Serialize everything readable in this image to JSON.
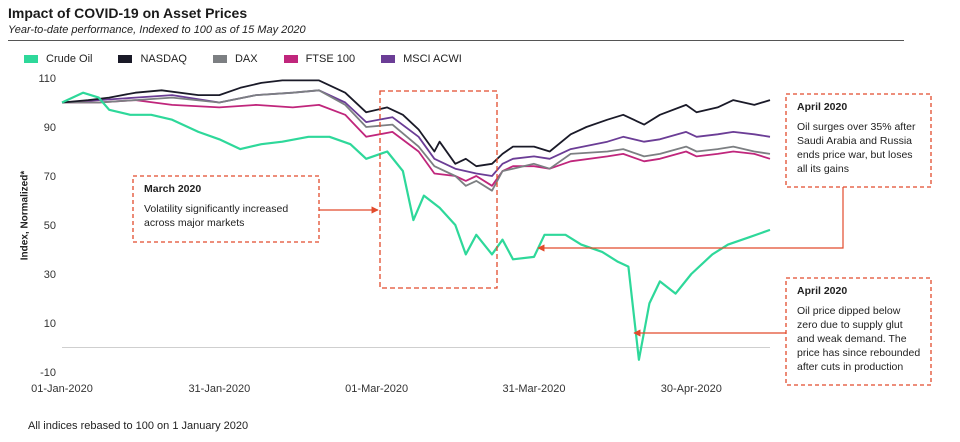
{
  "chart_data": {
    "type": "line",
    "title": "Impact of COVID-19 on Asset Prices",
    "subtitle": "Year-to-date performance, Indexed to 100 as of 15 May 2020",
    "ylabel": "Index, Normalized*",
    "xlabel": "",
    "ylim": [
      -10,
      110
    ],
    "yticks": [
      -10,
      10,
      30,
      50,
      70,
      90,
      110
    ],
    "xlim": [
      "2020-01-01",
      "2020-05-15"
    ],
    "xticks": [
      {
        "date": "2020-01-01",
        "label": "01-Jan-2020"
      },
      {
        "date": "2020-01-31",
        "label": "31-Jan-2020"
      },
      {
        "date": "2020-03-01",
        "label": "01-Mar-2020"
      },
      {
        "date": "2020-03-31",
        "label": "31-Mar-2020"
      },
      {
        "date": "2020-04-30",
        "label": "30-Apr-2020"
      }
    ],
    "reference_line": {
      "y": 0
    },
    "series": [
      {
        "name": "Crude Oil",
        "color": "#2ed89a",
        "points": [
          [
            "2020-01-01",
            100
          ],
          [
            "2020-01-05",
            104
          ],
          [
            "2020-01-08",
            102
          ],
          [
            "2020-01-10",
            97
          ],
          [
            "2020-01-14",
            95
          ],
          [
            "2020-01-18",
            95
          ],
          [
            "2020-01-22",
            93
          ],
          [
            "2020-01-27",
            88
          ],
          [
            "2020-01-31",
            85
          ],
          [
            "2020-02-04",
            81
          ],
          [
            "2020-02-08",
            83
          ],
          [
            "2020-02-12",
            84
          ],
          [
            "2020-02-17",
            86
          ],
          [
            "2020-02-21",
            86
          ],
          [
            "2020-02-25",
            83
          ],
          [
            "2020-02-28",
            77
          ],
          [
            "2020-03-03",
            80
          ],
          [
            "2020-03-06",
            72
          ],
          [
            "2020-03-08",
            52
          ],
          [
            "2020-03-10",
            62
          ],
          [
            "2020-03-13",
            57
          ],
          [
            "2020-03-16",
            50
          ],
          [
            "2020-03-18",
            38
          ],
          [
            "2020-03-20",
            46
          ],
          [
            "2020-03-23",
            38
          ],
          [
            "2020-03-25",
            44
          ],
          [
            "2020-03-27",
            36
          ],
          [
            "2020-03-31",
            37
          ],
          [
            "2020-04-02",
            46
          ],
          [
            "2020-04-06",
            46
          ],
          [
            "2020-04-09",
            42
          ],
          [
            "2020-04-13",
            39
          ],
          [
            "2020-04-16",
            35
          ],
          [
            "2020-04-18",
            33
          ],
          [
            "2020-04-20",
            -5
          ],
          [
            "2020-04-22",
            18
          ],
          [
            "2020-04-24",
            27
          ],
          [
            "2020-04-27",
            22
          ],
          [
            "2020-04-30",
            30
          ],
          [
            "2020-05-04",
            38
          ],
          [
            "2020-05-07",
            42
          ],
          [
            "2020-05-11",
            45
          ],
          [
            "2020-05-15",
            48
          ]
        ]
      },
      {
        "name": "NASDAQ",
        "color": "#1a1a28",
        "points": [
          [
            "2020-01-01",
            100
          ],
          [
            "2020-01-06",
            101
          ],
          [
            "2020-01-10",
            102
          ],
          [
            "2020-01-15",
            104
          ],
          [
            "2020-01-20",
            105
          ],
          [
            "2020-01-27",
            103
          ],
          [
            "2020-01-31",
            103
          ],
          [
            "2020-02-04",
            106
          ],
          [
            "2020-02-08",
            108
          ],
          [
            "2020-02-12",
            109
          ],
          [
            "2020-02-19",
            109
          ],
          [
            "2020-02-24",
            104
          ],
          [
            "2020-02-28",
            96
          ],
          [
            "2020-03-03",
            98
          ],
          [
            "2020-03-06",
            95
          ],
          [
            "2020-03-09",
            89
          ],
          [
            "2020-03-12",
            80
          ],
          [
            "2020-03-13",
            84
          ],
          [
            "2020-03-16",
            75
          ],
          [
            "2020-03-18",
            77
          ],
          [
            "2020-03-20",
            74
          ],
          [
            "2020-03-23",
            75
          ],
          [
            "2020-03-25",
            79
          ],
          [
            "2020-03-27",
            82
          ],
          [
            "2020-03-31",
            82
          ],
          [
            "2020-04-03",
            80
          ],
          [
            "2020-04-07",
            87
          ],
          [
            "2020-04-10",
            90
          ],
          [
            "2020-04-14",
            93
          ],
          [
            "2020-04-17",
            95
          ],
          [
            "2020-04-21",
            91
          ],
          [
            "2020-04-24",
            95
          ],
          [
            "2020-04-29",
            99
          ],
          [
            "2020-05-01",
            96
          ],
          [
            "2020-05-05",
            98
          ],
          [
            "2020-05-08",
            101
          ],
          [
            "2020-05-12",
            99
          ],
          [
            "2020-05-15",
            101
          ]
        ]
      },
      {
        "name": "DAX",
        "color": "#7c7f82",
        "points": [
          [
            "2020-01-01",
            100
          ],
          [
            "2020-01-08",
            100
          ],
          [
            "2020-01-15",
            101
          ],
          [
            "2020-01-22",
            102
          ],
          [
            "2020-01-31",
            100
          ],
          [
            "2020-02-07",
            103
          ],
          [
            "2020-02-14",
            104
          ],
          [
            "2020-02-19",
            105
          ],
          [
            "2020-02-24",
            99
          ],
          [
            "2020-02-28",
            90
          ],
          [
            "2020-03-04",
            91
          ],
          [
            "2020-03-09",
            82
          ],
          [
            "2020-03-12",
            74
          ],
          [
            "2020-03-16",
            70
          ],
          [
            "2020-03-18",
            66
          ],
          [
            "2020-03-20",
            68
          ],
          [
            "2020-03-23",
            64
          ],
          [
            "2020-03-25",
            72
          ],
          [
            "2020-03-27",
            73
          ],
          [
            "2020-03-31",
            75
          ],
          [
            "2020-04-03",
            73
          ],
          [
            "2020-04-07",
            79
          ],
          [
            "2020-04-14",
            80
          ],
          [
            "2020-04-17",
            81
          ],
          [
            "2020-04-21",
            78
          ],
          [
            "2020-04-24",
            79
          ],
          [
            "2020-04-29",
            82
          ],
          [
            "2020-05-01",
            80
          ],
          [
            "2020-05-05",
            81
          ],
          [
            "2020-05-08",
            82
          ],
          [
            "2020-05-12",
            80
          ],
          [
            "2020-05-15",
            79
          ]
        ]
      },
      {
        "name": "FTSE 100",
        "color": "#c0267c",
        "points": [
          [
            "2020-01-01",
            100
          ],
          [
            "2020-01-08",
            100
          ],
          [
            "2020-01-15",
            101
          ],
          [
            "2020-01-22",
            99
          ],
          [
            "2020-01-31",
            98
          ],
          [
            "2020-02-07",
            99
          ],
          [
            "2020-02-14",
            98
          ],
          [
            "2020-02-19",
            99
          ],
          [
            "2020-02-24",
            95
          ],
          [
            "2020-02-28",
            86
          ],
          [
            "2020-03-04",
            88
          ],
          [
            "2020-03-09",
            80
          ],
          [
            "2020-03-12",
            71
          ],
          [
            "2020-03-16",
            70
          ],
          [
            "2020-03-18",
            68
          ],
          [
            "2020-03-20",
            70
          ],
          [
            "2020-03-23",
            66
          ],
          [
            "2020-03-25",
            72
          ],
          [
            "2020-03-27",
            74
          ],
          [
            "2020-03-31",
            74
          ],
          [
            "2020-04-03",
            73
          ],
          [
            "2020-04-07",
            76
          ],
          [
            "2020-04-14",
            78
          ],
          [
            "2020-04-17",
            79
          ],
          [
            "2020-04-21",
            76
          ],
          [
            "2020-04-24",
            77
          ],
          [
            "2020-04-29",
            80
          ],
          [
            "2020-05-01",
            78
          ],
          [
            "2020-05-05",
            79
          ],
          [
            "2020-05-08",
            80
          ],
          [
            "2020-05-12",
            79
          ],
          [
            "2020-05-15",
            77
          ]
        ]
      },
      {
        "name": "MSCI ACWI",
        "color": "#6b3d96",
        "points": [
          [
            "2020-01-01",
            100
          ],
          [
            "2020-01-08",
            101
          ],
          [
            "2020-01-15",
            102
          ],
          [
            "2020-01-22",
            103
          ],
          [
            "2020-01-31",
            100
          ],
          [
            "2020-02-07",
            103
          ],
          [
            "2020-02-14",
            104
          ],
          [
            "2020-02-19",
            105
          ],
          [
            "2020-02-24",
            100
          ],
          [
            "2020-02-28",
            92
          ],
          [
            "2020-03-04",
            94
          ],
          [
            "2020-03-09",
            86
          ],
          [
            "2020-03-12",
            77
          ],
          [
            "2020-03-16",
            73
          ],
          [
            "2020-03-18",
            72
          ],
          [
            "2020-03-20",
            71
          ],
          [
            "2020-03-23",
            70
          ],
          [
            "2020-03-25",
            75
          ],
          [
            "2020-03-27",
            77
          ],
          [
            "2020-03-31",
            78
          ],
          [
            "2020-04-03",
            77
          ],
          [
            "2020-04-07",
            81
          ],
          [
            "2020-04-14",
            84
          ],
          [
            "2020-04-17",
            86
          ],
          [
            "2020-04-21",
            84
          ],
          [
            "2020-04-24",
            85
          ],
          [
            "2020-04-29",
            88
          ],
          [
            "2020-05-01",
            86
          ],
          [
            "2020-05-05",
            87
          ],
          [
            "2020-05-08",
            88
          ],
          [
            "2020-05-12",
            87
          ],
          [
            "2020-05-15",
            86
          ]
        ]
      }
    ],
    "annotations": [
      {
        "id": "march",
        "title": "March 2020",
        "lines": [
          "Volatility significantly increased",
          "across major markets"
        ],
        "color": "#e24b2c"
      },
      {
        "id": "april1",
        "title": "April 2020",
        "lines": [
          "Oil surges over 35%  after",
          "Saudi Arabia and Russia",
          "ends price war, but loses",
          "all its gains"
        ],
        "color": "#e24b2c"
      },
      {
        "id": "april2",
        "title": "April 2020",
        "lines": [
          "Oil price dipped below",
          "zero due to supply glut",
          "and weak demand. The",
          "price has since rebounded",
          "after cuts in production"
        ],
        "color": "#e24b2c"
      }
    ]
  },
  "footnote": "All indices rebased to 100 on 1 January  2020"
}
